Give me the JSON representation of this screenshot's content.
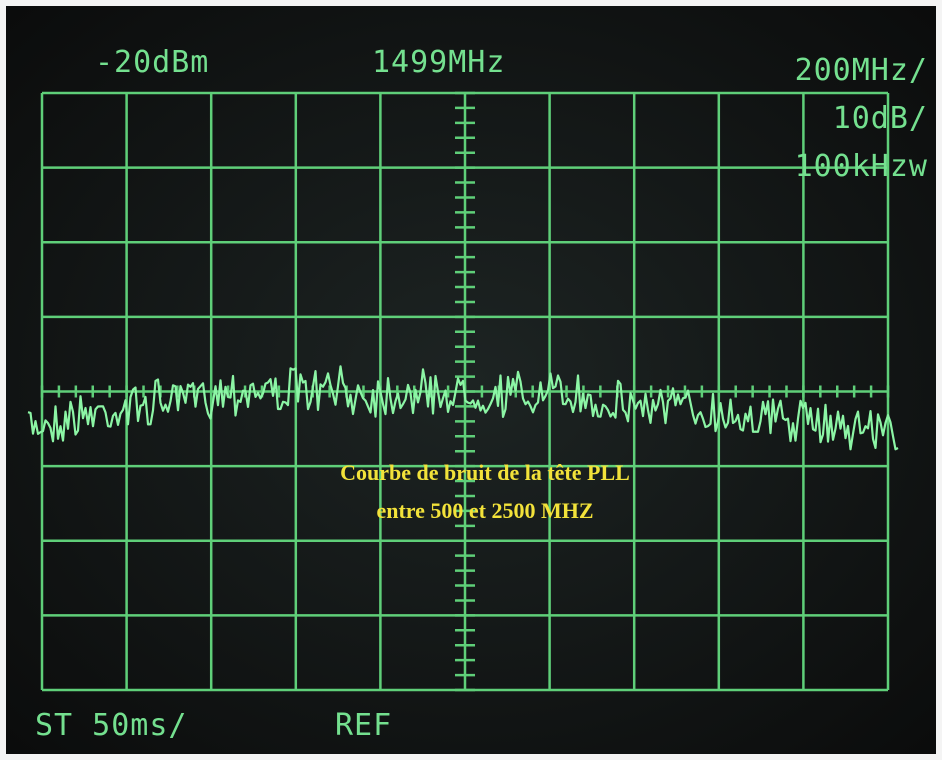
{
  "screen": {
    "top_left": "-20dBm",
    "top_center": "1499MHz",
    "top_right": [
      "200MHz/",
      "10dB/",
      "100kHzw"
    ],
    "bottom_left": "ST 50ms/",
    "bottom_center": "REF"
  },
  "caption": [
    "Courbe de bruit de la tête PLL",
    "entre 500 et 2500 MHZ"
  ]
}
